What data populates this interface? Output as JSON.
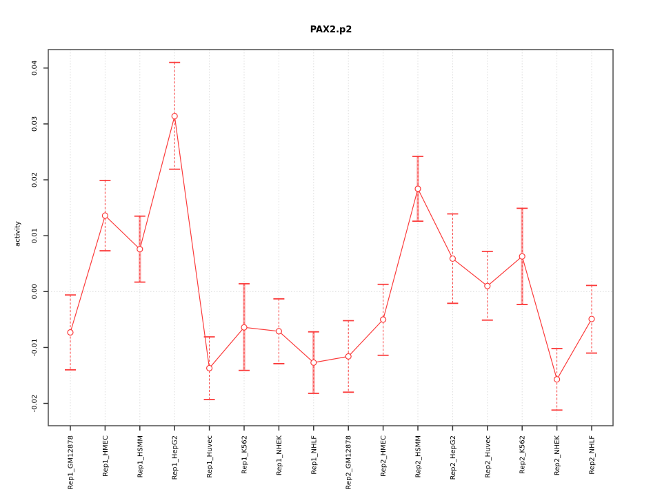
{
  "chart_data": {
    "type": "line",
    "title": "PAX2.p2",
    "xlabel": "",
    "ylabel": "activity",
    "ylim": [
      -0.024,
      0.0433
    ],
    "y_ticks": [
      "-0.02",
      "-0.01",
      "0.00",
      "0.01",
      "0.02",
      "0.03",
      "0.04"
    ],
    "grid": {
      "vertical_dotted_per_category": true,
      "horizontal_dotted_zero_line": true
    },
    "legend": "none",
    "marker": "open-circle",
    "colors": {
      "line": "#fb3b3b",
      "error_band": "rgba(250,110,110,0.6)",
      "gridline": "#dcdcdc",
      "box": "#4d4d4d",
      "text": "#000000"
    },
    "categories": [
      "Rep1_GM12878",
      "Rep1_HMEC",
      "Rep1_HSMM",
      "Rep1_HepG2",
      "Rep1_Huvec",
      "Rep1_K562",
      "Rep1_NHEK",
      "Rep1_NHLF",
      "Rep2_GM12878",
      "Rep2_HMEC",
      "Rep2_HSMM",
      "Rep2_HepG2",
      "Rep2_Huvec",
      "Rep2_K562",
      "Rep2_NHEK",
      "Rep2_NHLF"
    ],
    "series": [
      {
        "name": "activity",
        "points": [
          {
            "label": "Rep1_GM12878",
            "value": -0.0073,
            "lo": -0.014,
            "hi": -0.0006,
            "thick": false
          },
          {
            "label": "Rep1_HMEC",
            "value": 0.0136,
            "lo": 0.0073,
            "hi": 0.0199,
            "thick": false
          },
          {
            "label": "Rep1_HSMM",
            "value": 0.0076,
            "lo": 0.0017,
            "hi": 0.0135,
            "thick": true
          },
          {
            "label": "Rep1_HepG2",
            "value": 0.0314,
            "lo": 0.0219,
            "hi": 0.041,
            "thick": false
          },
          {
            "label": "Rep1_Huvec",
            "value": -0.0137,
            "lo": -0.0193,
            "hi": -0.0081,
            "thick": false
          },
          {
            "label": "Rep1_K562",
            "value": -0.0064,
            "lo": -0.0141,
            "hi": 0.0014,
            "thick": true
          },
          {
            "label": "Rep1_NHEK",
            "value": -0.0071,
            "lo": -0.0129,
            "hi": -0.0013,
            "thick": false
          },
          {
            "label": "Rep1_NHLF",
            "value": -0.0127,
            "lo": -0.0182,
            "hi": -0.0072,
            "thick": true
          },
          {
            "label": "Rep2_GM12878",
            "value": -0.0116,
            "lo": -0.018,
            "hi": -0.0052,
            "thick": false
          },
          {
            "label": "Rep2_HMEC",
            "value": -0.005,
            "lo": -0.0114,
            "hi": 0.0013,
            "thick": false
          },
          {
            "label": "Rep2_HSMM",
            "value": 0.0184,
            "lo": 0.0126,
            "hi": 0.0242,
            "thick": true
          },
          {
            "label": "Rep2_HepG2",
            "value": 0.0059,
            "lo": -0.0021,
            "hi": 0.0139,
            "thick": false
          },
          {
            "label": "Rep2_Huvec",
            "value": 0.001,
            "lo": -0.0051,
            "hi": 0.0072,
            "thick": false
          },
          {
            "label": "Rep2_K562",
            "value": 0.0063,
            "lo": -0.0023,
            "hi": 0.0149,
            "thick": true
          },
          {
            "label": "Rep2_NHEK",
            "value": -0.0157,
            "lo": -0.0212,
            "hi": -0.0102,
            "thick": false
          },
          {
            "label": "Rep2_NHLF",
            "value": -0.0049,
            "lo": -0.011,
            "hi": 0.0011,
            "thick": false
          }
        ]
      }
    ]
  }
}
